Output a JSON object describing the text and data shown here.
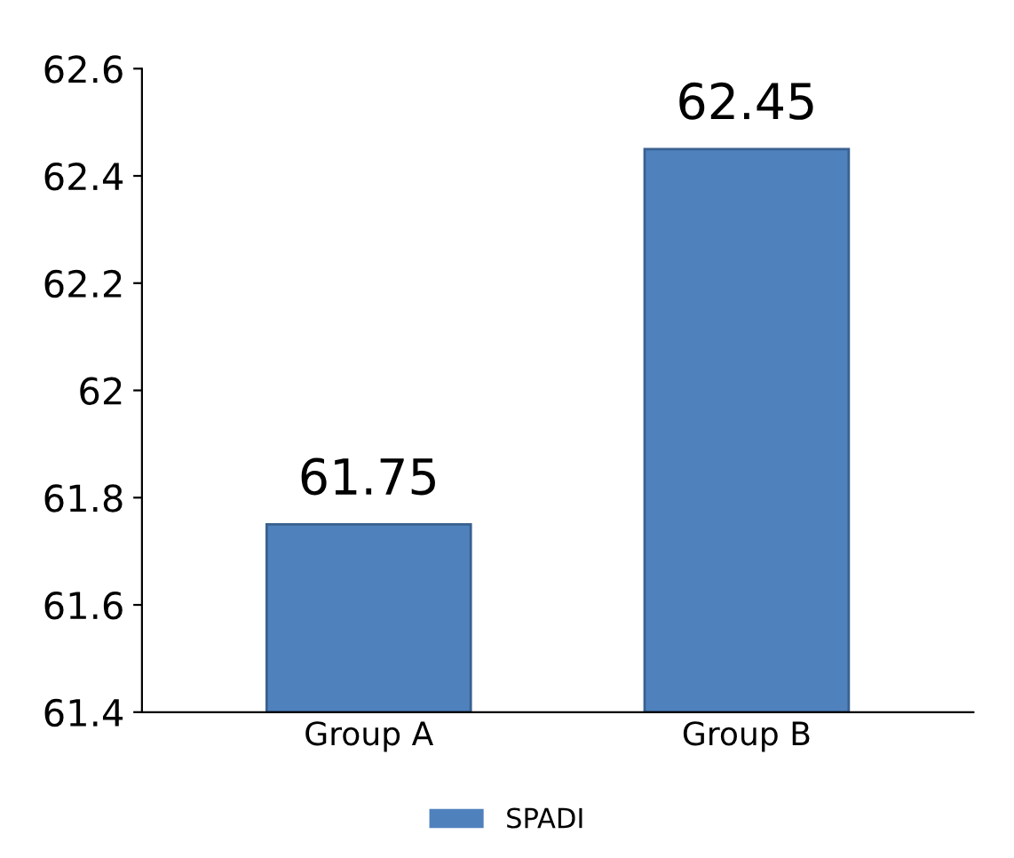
{
  "chart_data": {
    "type": "bar",
    "categories": [
      "Group A",
      "Group B"
    ],
    "series": [
      {
        "name": "SPADI",
        "color": "#4f81bd",
        "values": [
          61.75,
          62.45
        ]
      }
    ],
    "ylim": [
      61.4,
      62.6
    ],
    "yticks": [
      61.4,
      61.6,
      61.8,
      62,
      62.2,
      62.4,
      62.6
    ],
    "data_labels": true,
    "grid": false,
    "legend": "bottom"
  }
}
